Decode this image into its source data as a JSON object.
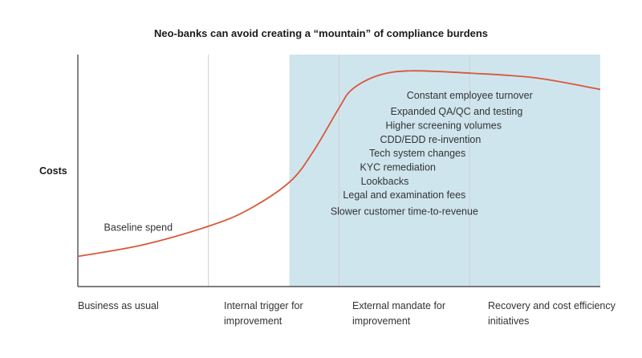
{
  "chart_data": {
    "type": "line",
    "title": "Neo-banks can avoid creating a “mountain” of compliance burdens",
    "ylabel": "Costs",
    "xlabel": "",
    "x_categories": [
      "Business as usual",
      "Internal trigger for improvement",
      "External mandate for improvement",
      "Recovery and cost efficiency initiatives"
    ],
    "highlight_region": {
      "from_category_index": 1.62,
      "to_category_index": 4,
      "color": "#cfe5ee"
    },
    "series": [
      {
        "color": "#d9573a",
        "x": [
          0,
          0.5,
          1.0,
          1.3,
          1.62,
          1.8,
          2.0,
          2.1,
          2.3,
          2.55,
          3.0,
          3.5,
          4.0
        ],
        "y": [
          0.13,
          0.18,
          0.26,
          0.33,
          0.45,
          0.58,
          0.77,
          0.85,
          0.91,
          0.93,
          0.92,
          0.9,
          0.85
        ]
      }
    ],
    "annotations": [
      {
        "text": "Baseline spend",
        "x": 0.2,
        "y": 0.24,
        "anchor": "start"
      },
      {
        "text": "Constant employee turnover",
        "x": 3.0,
        "y": 0.81,
        "anchor": "middle"
      },
      {
        "text": "Expanded QA/QC and testing",
        "x": 2.9,
        "y": 0.74,
        "anchor": "middle"
      },
      {
        "text": "Higher screening volumes",
        "x": 2.8,
        "y": 0.68,
        "anchor": "middle"
      },
      {
        "text": "CDD/EDD re-invention",
        "x": 2.7,
        "y": 0.62,
        "anchor": "middle"
      },
      {
        "text": "Tech system changes",
        "x": 2.6,
        "y": 0.56,
        "anchor": "middle"
      },
      {
        "text": "KYC remediation",
        "x": 2.45,
        "y": 0.5,
        "anchor": "middle"
      },
      {
        "text": "Lookbacks",
        "x": 2.35,
        "y": 0.44,
        "anchor": "middle"
      },
      {
        "text": "Legal and examination fees",
        "x": 2.5,
        "y": 0.38,
        "anchor": "middle"
      },
      {
        "text": "Slower customer time-to-revenue",
        "x": 2.5,
        "y": 0.31,
        "anchor": "middle"
      }
    ],
    "ylim": [
      0,
      1
    ],
    "xlim": [
      0,
      4
    ],
    "grid": "vertical-dividers"
  }
}
